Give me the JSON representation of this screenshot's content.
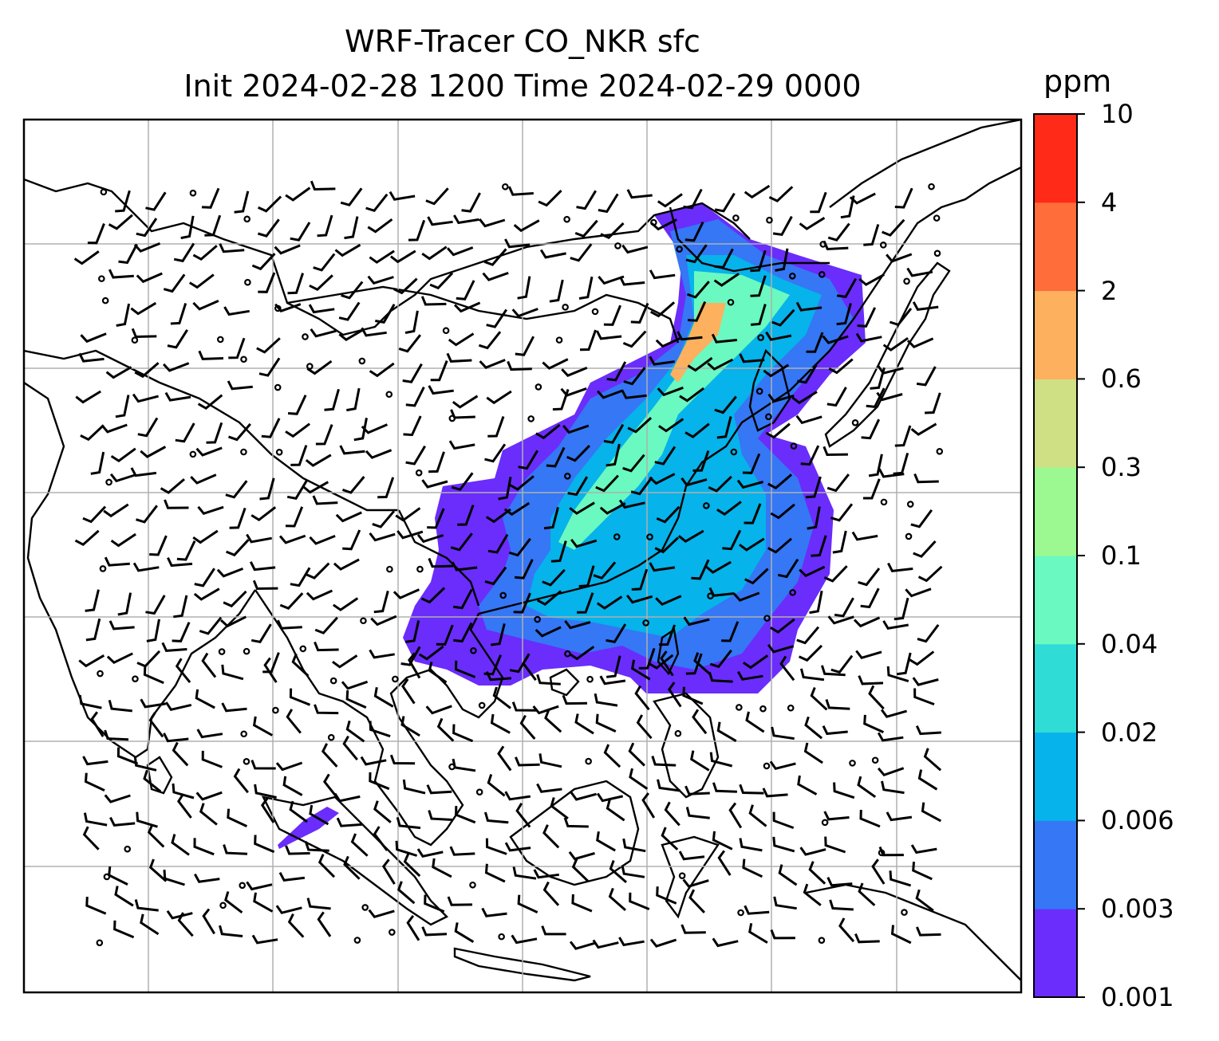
{
  "title_line1": "WRF-Tracer CO_NKR sfc",
  "title_line2": "Init 2024-02-28 1200 Time 2024-02-29 0000",
  "colorbar": {
    "unit": "ppm",
    "ticks": [
      "0.001",
      "0.003",
      "0.006",
      "0.02",
      "0.04",
      "0.1",
      "0.3",
      "0.6",
      "2",
      "4",
      "10"
    ],
    "colors": [
      "#6a2dfb",
      "#3577f5",
      "#06b3ea",
      "#2fdcd6",
      "#6af9c0",
      "#9cf991",
      "#cee083",
      "#fdb05e",
      "#ff6d3a",
      "#ff2a17"
    ]
  },
  "map": {
    "features": [
      "coastlines",
      "country-borders",
      "lat-lon-gridlines",
      "co-tracer-concentration",
      "wind-barbs"
    ],
    "plume_colors": {
      "low": "#6a2dfb",
      "mid": "#3577f5",
      "core": "#06b3ea",
      "high": "#6af9c0",
      "peak": "#fdb05e"
    }
  }
}
